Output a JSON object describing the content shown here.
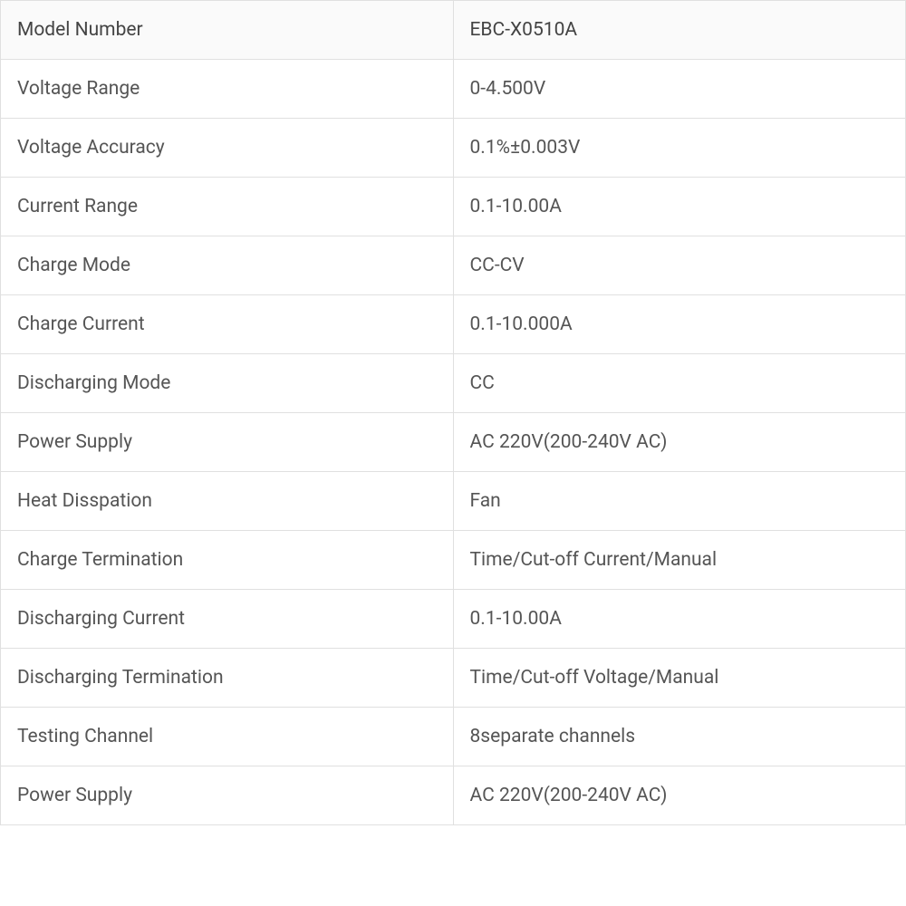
{
  "table": {
    "type": "table",
    "columns": [
      "label",
      "value"
    ],
    "column_widths": [
      "50%",
      "50%"
    ],
    "border_color": "#e0e0e0",
    "background_color": "#ffffff",
    "header_background_color": "#fafafa",
    "text_color": "#555555",
    "font_size": 21,
    "cell_padding": "20px 18px",
    "rows": [
      {
        "label": "Model Number",
        "value": "EBC-X0510A"
      },
      {
        "label": "Voltage Range",
        "value": "0-4.500V"
      },
      {
        "label": "Voltage Accuracy",
        "value": "0.1%±0.003V"
      },
      {
        "label": "Current Range",
        "value": "0.1-10.00A"
      },
      {
        "label": "Charge Mode",
        "value": "CC-CV"
      },
      {
        "label": "Charge Current",
        "value": "0.1-10.000A"
      },
      {
        "label": "Discharging Mode",
        "value": "CC"
      },
      {
        "label": "Power Supply",
        "value": "AC 220V(200-240V AC)"
      },
      {
        "label": "Heat Disspation",
        "value": "Fan"
      },
      {
        "label": "Charge Termination",
        "value": "Time/Cut-off Current/Manual"
      },
      {
        "label": "Discharging Current",
        "value": "0.1-10.00A"
      },
      {
        "label": "Discharging Termination",
        "value": "Time/Cut-off Voltage/Manual"
      },
      {
        "label": "Testing Channel",
        "value": "8separate channels"
      },
      {
        "label": "Power Supply",
        "value": "AC 220V(200-240V AC)"
      }
    ]
  }
}
